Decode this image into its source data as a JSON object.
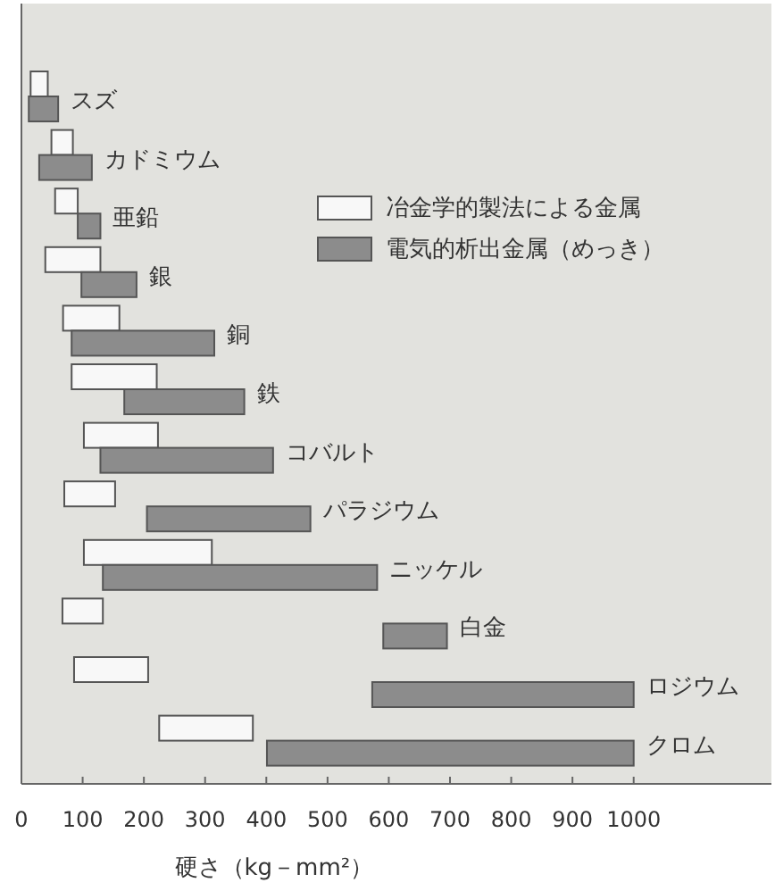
{
  "chart_data": {
    "type": "bar",
    "orientation": "horizontal",
    "xlabel": "硬さ（kg－mm²）",
    "categories": [
      "スズ",
      "カドミウム",
      "亜鉛",
      "銀",
      "銅",
      "鉄",
      "コバルト",
      "パラジウム",
      "ニッケル",
      "白金",
      "ロジウム",
      "クロム"
    ],
    "series": [
      {
        "name": "冶金学的製法による金属",
        "color": "#f8f8f8",
        "base": [
          15,
          49,
          55,
          39,
          68,
          82,
          102,
          70,
          102,
          67,
          86,
          225
        ],
        "values": [
          28,
          35,
          37,
          90,
          92,
          139,
          121,
          83,
          209,
          66,
          121,
          153
        ]
      },
      {
        "name": "電気的析出金属（めっき）",
        "color": "#8c8c8c",
        "base": [
          12,
          29,
          92,
          98,
          82,
          168,
          129,
          205,
          133,
          591,
          573,
          401
        ],
        "values": [
          48,
          86,
          37,
          90,
          233,
          196,
          282,
          267,
          448,
          104,
          427,
          599
        ]
      }
    ],
    "xlim": [
      0,
      1225
    ],
    "xticks": [
      0,
      100,
      200,
      300,
      400,
      500,
      600,
      700,
      800,
      900,
      1000
    ],
    "legend": "top right",
    "grid": false
  }
}
